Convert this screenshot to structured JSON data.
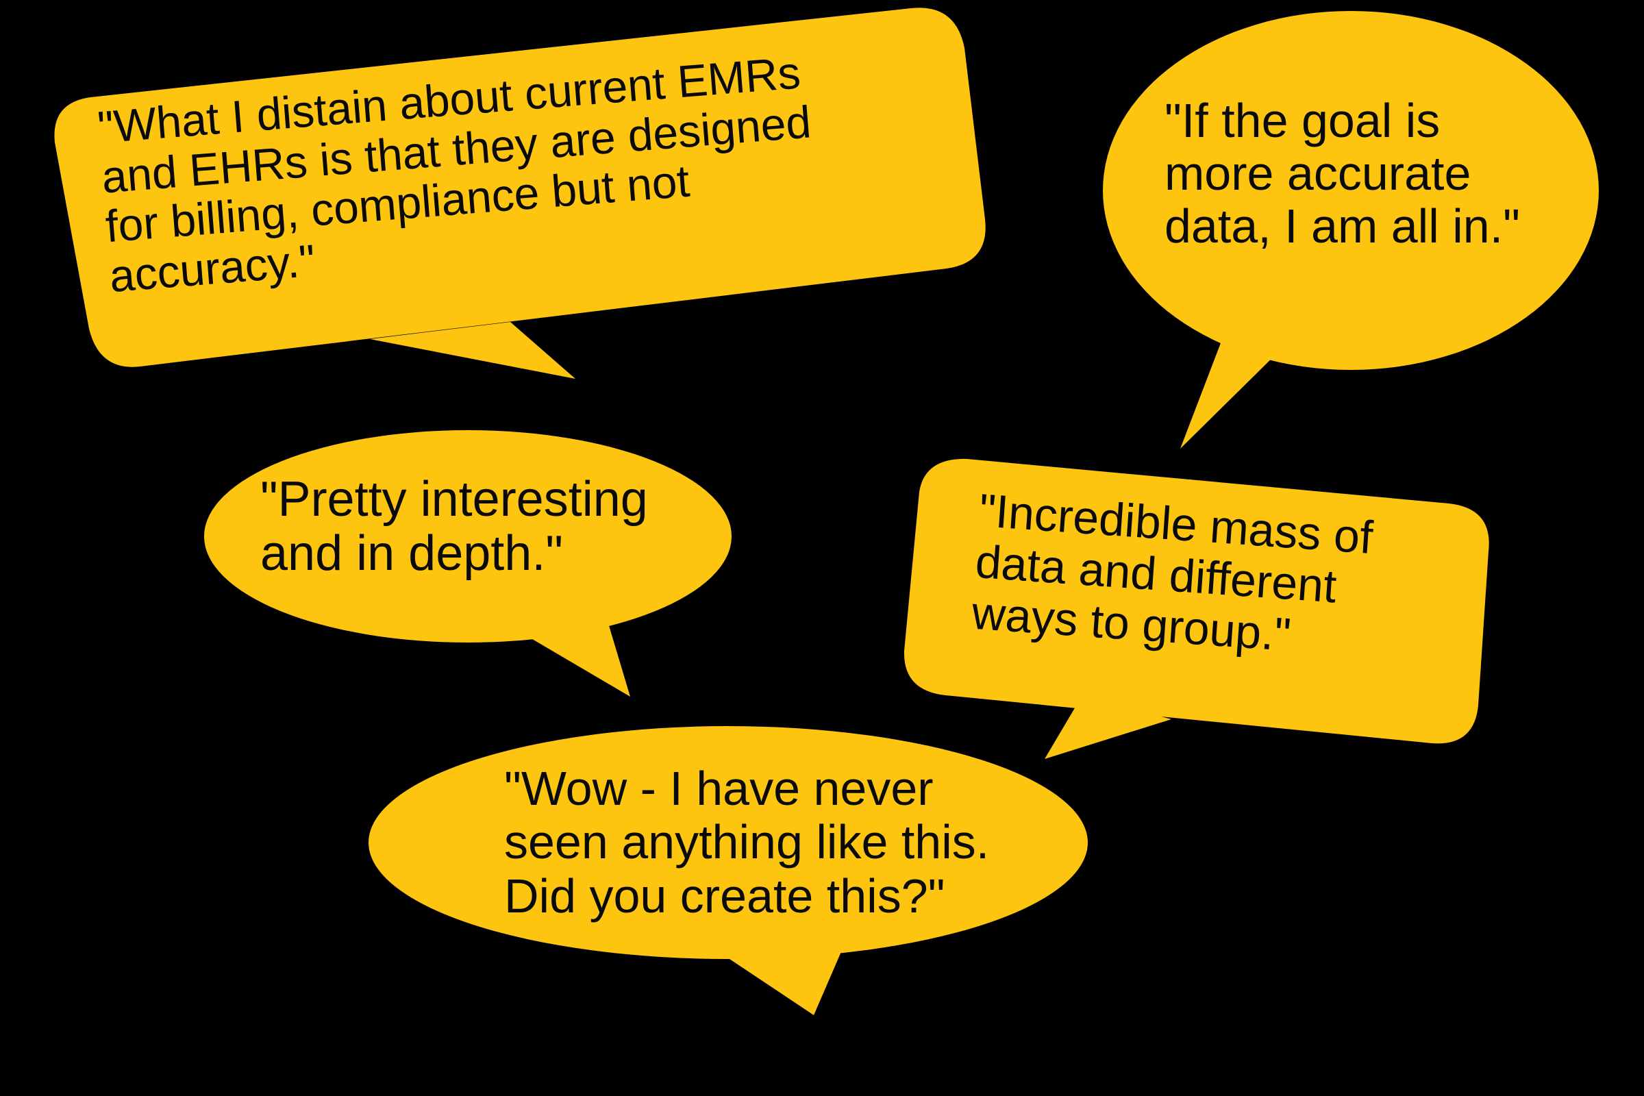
{
  "background_color": "#000000",
  "bubble_color": "#FDC410",
  "text_color": "#0a0a0a",
  "quotes": [
    {
      "text": "\"What I distain about current EMRs\nand EHRs is that they are designed\nfor billing, compliance but not\naccuracy.\""
    },
    {
      "text": "\"If the goal is\nmore accurate\ndata, I am all in.\""
    },
    {
      "text": "\"Pretty interesting\nand in depth.\""
    },
    {
      "text": "\"Incredible mass of\ndata and different\nways to group.\""
    },
    {
      "text": "\"Wow - I have never\nseen anything like this.\nDid you create this?\""
    }
  ]
}
